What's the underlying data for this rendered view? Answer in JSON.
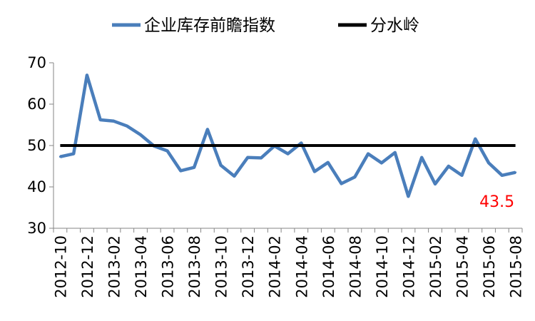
{
  "chart_data": {
    "type": "line",
    "title": "",
    "xlabel": "",
    "ylabel": "",
    "ylim": [
      30,
      70
    ],
    "yticks": [
      30,
      40,
      50,
      60,
      70
    ],
    "grid": false,
    "legend_position": "top",
    "categories": [
      "2012-10",
      "2012-11",
      "2012-12",
      "2013-01",
      "2013-02",
      "2013-03",
      "2013-04",
      "2013-05",
      "2013-06",
      "2013-07",
      "2013-08",
      "2013-09",
      "2013-10",
      "2013-11",
      "2013-12",
      "2014-01",
      "2014-02",
      "2014-03",
      "2014-04",
      "2014-05",
      "2014-06",
      "2014-07",
      "2014-08",
      "2014-09",
      "2014-10",
      "2014-11",
      "2014-12",
      "2015-01",
      "2015-02",
      "2015-03",
      "2015-04",
      "2015-05",
      "2015-06",
      "2015-07",
      "2015-08"
    ],
    "xtick_labels": [
      "2012-10",
      "2012-12",
      "2013-02",
      "2013-04",
      "2013-06",
      "2013-08",
      "2013-10",
      "2013-12",
      "2014-02",
      "2014-04",
      "2014-06",
      "2014-08",
      "2014-10",
      "2014-12",
      "2015-02",
      "2015-04",
      "2015-06",
      "2015-08"
    ],
    "series": [
      {
        "name": "企业库存前瞻指数",
        "color": "#4a7ebb",
        "values": [
          47.3,
          48.0,
          67.0,
          56.2,
          55.9,
          54.7,
          52.6,
          49.9,
          48.7,
          43.9,
          44.7,
          53.9,
          45.2,
          42.6,
          47.1,
          47.0,
          49.9,
          48.0,
          50.6,
          43.7,
          45.9,
          40.8,
          42.4,
          48.0,
          45.8,
          48.3,
          37.7,
          47.1,
          40.7,
          45.0,
          42.8,
          51.6,
          45.8,
          42.8,
          43.5
        ]
      },
      {
        "name": "分水岭",
        "color": "#000000",
        "values": [
          50,
          50,
          50,
          50,
          50,
          50,
          50,
          50,
          50,
          50,
          50,
          50,
          50,
          50,
          50,
          50,
          50,
          50,
          50,
          50,
          50,
          50,
          50,
          50,
          50,
          50,
          50,
          50,
          50,
          50,
          50,
          50,
          50,
          50,
          50
        ]
      }
    ],
    "annotations": [
      {
        "text": "43.5",
        "color": "#ff0000",
        "at_category": "2015-08"
      }
    ]
  }
}
